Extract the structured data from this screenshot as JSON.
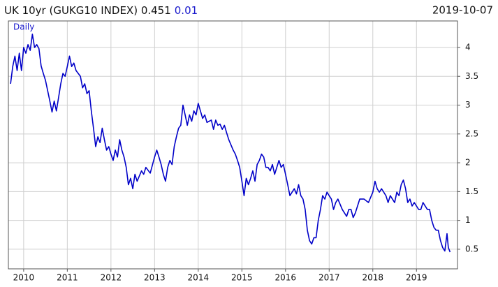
{
  "chart_data": {
    "type": "line",
    "title": "UK 10yr (GUKG10 INDEX) 0.451",
    "change": "0.01",
    "date": "2019-10-07",
    "frequency": "Daily",
    "xlim": [
      2009.65,
      2019.94
    ],
    "xticks": [
      2010,
      2011,
      2012,
      2013,
      2014,
      2015,
      2016,
      2017,
      2018,
      2019
    ],
    "ylim": [
      0.16,
      4.46
    ],
    "yticks": [
      0.5,
      1,
      1.5,
      2,
      2.5,
      3,
      3.5,
      4
    ],
    "grid": true,
    "series": [
      {
        "color": "#0000c8",
        "x": [
          2009.7,
          2009.75,
          2009.8,
          2009.85,
          2009.9,
          2009.95,
          2010,
          2010.05,
          2010.1,
          2010.15,
          2010.2,
          2010.25,
          2010.3,
          2010.35,
          2010.4,
          2010.45,
          2010.5,
          2010.55,
          2010.6,
          2010.65,
          2010.7,
          2010.75,
          2010.8,
          2010.85,
          2010.9,
          2010.95,
          2011,
          2011.05,
          2011.1,
          2011.15,
          2011.2,
          2011.3,
          2011.35,
          2011.4,
          2011.45,
          2011.5,
          2011.55,
          2011.6,
          2011.65,
          2011.7,
          2011.75,
          2011.8,
          2011.85,
          2011.9,
          2011.95,
          2012,
          2012.05,
          2012.1,
          2012.15,
          2012.2,
          2012.25,
          2012.3,
          2012.35,
          2012.4,
          2012.45,
          2012.5,
          2012.55,
          2012.6,
          2012.7,
          2012.75,
          2012.8,
          2012.9,
          2013,
          2013.05,
          2013.1,
          2013.15,
          2013.2,
          2013.25,
          2013.3,
          2013.35,
          2013.4,
          2013.45,
          2013.5,
          2013.55,
          2013.6,
          2013.65,
          2013.7,
          2013.75,
          2013.8,
          2013.85,
          2013.9,
          2013.95,
          2014,
          2014.05,
          2014.1,
          2014.15,
          2014.2,
          2014.3,
          2014.35,
          2014.4,
          2014.45,
          2014.5,
          2014.55,
          2014.6,
          2014.65,
          2014.7,
          2014.8,
          2014.85,
          2014.9,
          2014.95,
          2015,
          2015.05,
          2015.1,
          2015.15,
          2015.2,
          2015.25,
          2015.3,
          2015.35,
          2015.4,
          2015.45,
          2015.5,
          2015.55,
          2015.6,
          2015.65,
          2015.7,
          2015.75,
          2015.8,
          2015.85,
          2015.9,
          2015.95,
          2016,
          2016.05,
          2016.1,
          2016.15,
          2016.2,
          2016.25,
          2016.3,
          2016.35,
          2016.4,
          2016.45,
          2016.5,
          2016.55,
          2016.6,
          2016.65,
          2016.7,
          2016.75,
          2016.8,
          2016.85,
          2016.9,
          2016.95,
          2017,
          2017.05,
          2017.1,
          2017.15,
          2017.2,
          2017.3,
          2017.35,
          2017.4,
          2017.45,
          2017.5,
          2017.55,
          2017.6,
          2017.65,
          2017.7,
          2017.8,
          2017.9,
          2018,
          2018.05,
          2018.1,
          2018.15,
          2018.2,
          2018.3,
          2018.35,
          2018.4,
          2018.5,
          2018.55,
          2018.6,
          2018.65,
          2018.7,
          2018.75,
          2018.8,
          2018.85,
          2018.9,
          2018.95,
          2019,
          2019.05,
          2019.1,
          2019.15,
          2019.2,
          2019.25,
          2019.3,
          2019.35,
          2019.4,
          2019.45,
          2019.5,
          2019.55,
          2019.6,
          2019.65,
          2019.7,
          2019.73,
          2019.77
        ],
        "values": [
          3.37,
          3.67,
          3.85,
          3.6,
          3.9,
          3.6,
          4.0,
          3.9,
          4.05,
          3.95,
          4.23,
          4.0,
          4.05,
          3.98,
          3.68,
          3.55,
          3.43,
          3.25,
          3.07,
          2.88,
          3.07,
          2.9,
          3.13,
          3.37,
          3.55,
          3.5,
          3.67,
          3.85,
          3.67,
          3.73,
          3.6,
          3.5,
          3.3,
          3.37,
          3.2,
          3.25,
          2.9,
          2.6,
          2.28,
          2.45,
          2.35,
          2.6,
          2.4,
          2.22,
          2.28,
          2.15,
          2.04,
          2.22,
          2.1,
          2.4,
          2.22,
          2.1,
          1.92,
          1.62,
          1.73,
          1.55,
          1.8,
          1.68,
          1.86,
          1.8,
          1.92,
          1.82,
          2.1,
          2.22,
          2.1,
          1.97,
          1.8,
          1.68,
          1.92,
          2.04,
          1.97,
          2.28,
          2.45,
          2.6,
          2.65,
          3.0,
          2.83,
          2.65,
          2.83,
          2.72,
          2.9,
          2.83,
          3.03,
          2.9,
          2.77,
          2.83,
          2.7,
          2.74,
          2.58,
          2.74,
          2.65,
          2.67,
          2.58,
          2.65,
          2.52,
          2.4,
          2.22,
          2.15,
          2.04,
          1.92,
          1.68,
          1.43,
          1.73,
          1.62,
          1.73,
          1.86,
          1.68,
          1.97,
          2.04,
          2.15,
          2.1,
          1.92,
          1.92,
          1.86,
          1.97,
          1.8,
          1.92,
          2.04,
          1.92,
          1.97,
          1.8,
          1.62,
          1.43,
          1.49,
          1.55,
          1.46,
          1.62,
          1.43,
          1.37,
          1.19,
          0.83,
          0.65,
          0.59,
          0.7,
          0.7,
          1.0,
          1.19,
          1.43,
          1.37,
          1.49,
          1.43,
          1.37,
          1.19,
          1.31,
          1.37,
          1.19,
          1.13,
          1.07,
          1.19,
          1.19,
          1.05,
          1.13,
          1.25,
          1.37,
          1.37,
          1.31,
          1.49,
          1.68,
          1.55,
          1.49,
          1.55,
          1.43,
          1.31,
          1.43,
          1.31,
          1.49,
          1.43,
          1.62,
          1.7,
          1.55,
          1.31,
          1.37,
          1.25,
          1.31,
          1.25,
          1.19,
          1.19,
          1.31,
          1.25,
          1.19,
          1.19,
          1.0,
          0.88,
          0.83,
          0.83,
          0.65,
          0.53,
          0.47,
          0.77,
          0.53,
          0.451
        ]
      }
    ]
  }
}
